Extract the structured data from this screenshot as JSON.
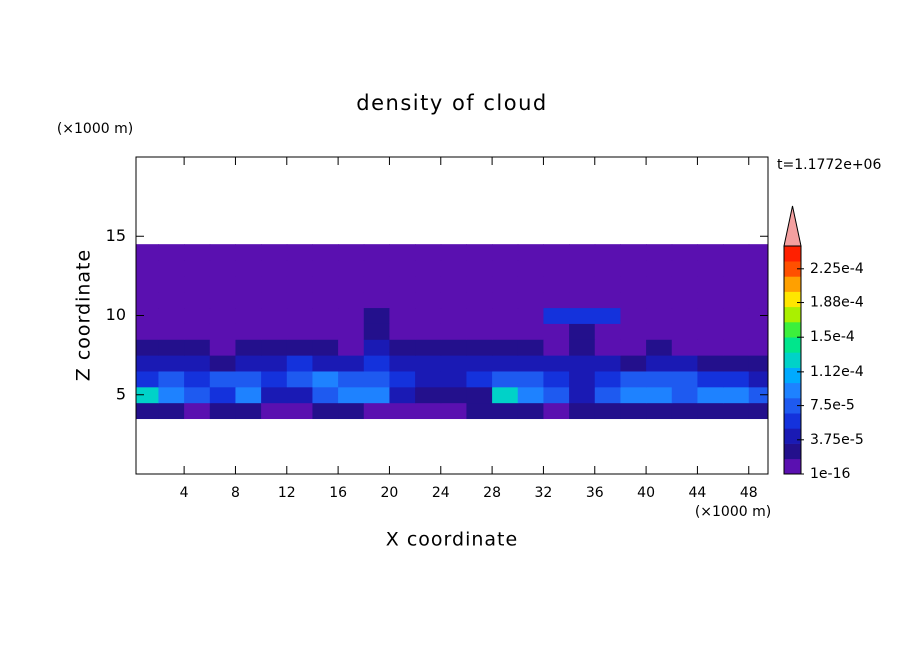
{
  "chart_data": {
    "type": "contour",
    "title": "density of cloud",
    "x_label": "X coordinate",
    "y_label": "Z coordinate",
    "x_unit": "(×1000 m)",
    "y_unit": "(×1000 m)",
    "annotation": "t=1.1772e+06",
    "xlim": [
      0.25,
      49.5
    ],
    "ylim": [
      0,
      20
    ],
    "xticks": [
      4,
      8,
      12,
      16,
      20,
      24,
      28,
      32,
      36,
      40,
      44,
      48
    ],
    "yticks": [
      5,
      10,
      15
    ],
    "x": [
      1,
      3,
      5,
      7,
      9,
      11,
      13,
      15,
      17,
      19,
      21,
      23,
      25,
      27,
      29,
      31,
      33,
      35,
      37,
      39,
      41,
      43,
      45,
      47,
      49
    ],
    "y": [
      4,
      5,
      6,
      7,
      8,
      9,
      10,
      11,
      12,
      13,
      14
    ],
    "z": [
      [
        2e-05,
        2e-05,
        1e-16,
        2e-05,
        2e-05,
        1e-16,
        1e-16,
        2e-05,
        2e-05,
        1e-16,
        1e-16,
        1e-16,
        1e-16,
        2e-05,
        2e-05,
        2e-05,
        1e-16,
        2e-05,
        2e-05,
        2e-05,
        2e-05,
        2e-05,
        2e-05,
        2e-05,
        2e-05
      ],
      [
        0.00012,
        9e-05,
        8e-05,
        6e-05,
        9e-05,
        5e-05,
        4e-05,
        8e-05,
        0.0001,
        9e-05,
        4e-05,
        2e-05,
        2e-05,
        3e-05,
        0.00013,
        0.0001,
        7e-05,
        4e-05,
        8e-05,
        9e-05,
        0.0001,
        8e-05,
        9e-05,
        9e-05,
        8e-05
      ],
      [
        6e-05,
        7e-05,
        6e-05,
        8e-05,
        7e-05,
        6e-05,
        7e-05,
        9e-05,
        8e-05,
        7e-05,
        6e-05,
        5e-05,
        4e-05,
        6e-05,
        8e-05,
        7e-05,
        6e-05,
        5e-05,
        6e-05,
        7e-05,
        8e-05,
        7e-05,
        6e-05,
        6e-05,
        5e-05
      ],
      [
        4e-05,
        4e-05,
        5e-05,
        3e-05,
        4e-05,
        5e-05,
        6e-05,
        4e-05,
        5e-05,
        6e-05,
        5e-05,
        4e-05,
        5e-05,
        4e-05,
        5e-05,
        4e-05,
        5e-05,
        4e-05,
        4e-05,
        3e-05,
        4e-05,
        4e-05,
        3e-05,
        3e-05,
        3e-05
      ],
      [
        2e-05,
        2e-05,
        2e-05,
        1e-16,
        2e-05,
        3e-05,
        2e-05,
        2e-05,
        1e-16,
        4e-05,
        2e-05,
        2e-05,
        2e-05,
        2e-05,
        2e-05,
        2e-05,
        1e-16,
        2e-05,
        1e-16,
        1e-16,
        2e-05,
        1e-16,
        1e-16,
        1e-16,
        1e-16
      ],
      [
        1e-16,
        1e-16,
        1e-16,
        1e-16,
        1e-16,
        1e-16,
        1e-16,
        1e-16,
        1e-16,
        2e-05,
        1e-16,
        1e-16,
        1e-16,
        1e-16,
        1e-16,
        1e-16,
        1e-16,
        2e-05,
        1e-16,
        1e-16,
        1e-16,
        1e-16,
        1e-16,
        1e-16,
        1e-16
      ],
      [
        1e-16,
        1e-16,
        1e-16,
        1e-16,
        1e-16,
        1e-16,
        1e-16,
        1e-16,
        1e-16,
        2e-05,
        1e-16,
        1e-16,
        1e-16,
        1e-16,
        1e-16,
        1e-16,
        6e-05,
        6e-05,
        6e-05,
        1e-16,
        1e-16,
        1e-16,
        1e-16,
        1e-16,
        1e-16
      ],
      [
        1e-16,
        1e-16,
        1e-16,
        1e-16,
        1e-16,
        1e-16,
        1e-16,
        1e-16,
        1e-16,
        1e-16,
        1e-16,
        1e-16,
        1e-16,
        1e-16,
        1e-16,
        1e-16,
        1e-16,
        1e-16,
        1e-16,
        1e-16,
        1e-16,
        1e-16,
        1e-16,
        1e-16,
        1e-16
      ],
      [
        1e-16,
        1e-16,
        1e-16,
        1e-16,
        1e-16,
        1e-16,
        1e-16,
        1e-16,
        1e-16,
        1e-16,
        1e-16,
        1e-16,
        1e-16,
        1e-16,
        1e-16,
        1e-16,
        1e-16,
        1e-16,
        1e-16,
        1e-16,
        1e-16,
        1e-16,
        1e-16,
        1e-16,
        1e-16
      ],
      [
        1e-16,
        1e-16,
        1e-16,
        1e-16,
        1e-16,
        1e-16,
        1e-16,
        1e-16,
        1e-16,
        1e-16,
        1e-16,
        1e-16,
        1e-16,
        1e-16,
        1e-16,
        1e-16,
        1e-16,
        1e-16,
        1e-16,
        1e-16,
        1e-16,
        1e-16,
        1e-16,
        1e-16,
        1e-16
      ],
      [
        1e-16,
        1e-16,
        1e-16,
        1e-16,
        1e-16,
        1e-16,
        1e-16,
        1e-16,
        1e-16,
        1e-16,
        1e-16,
        1e-16,
        1e-16,
        1e-16,
        1e-16,
        1e-16,
        1e-16,
        1e-16,
        1e-16,
        1e-16,
        1e-16,
        1e-16,
        1e-16,
        1e-16,
        1e-16
      ]
    ],
    "colorbar": {
      "clim": [
        1e-16,
        0.00025
      ],
      "colors": [
        "#5a10b0",
        "#23108c",
        "#1a1ab4",
        "#1432dc",
        "#1e5af0",
        "#1e82ff",
        "#00aaff",
        "#00d2c8",
        "#00e68c",
        "#3cf03c",
        "#aaf000",
        "#ffe600",
        "#ffa000",
        "#ff5000",
        "#ff2000"
      ],
      "extend_color": "#f4a0a0",
      "ticks": [
        1e-16,
        {
          "value": 3.75e-05,
          "label": "3.75e-5"
        },
        {
          "value": 7.5e-05,
          "label": "7.5e-5"
        },
        {
          "value": 0.000112,
          "label": "1.12e-4"
        },
        {
          "value": 0.00015,
          "label": "1.5e-4"
        },
        {
          "value": 0.000188,
          "label": "1.88e-4"
        },
        {
          "value": 0.000225,
          "label": "2.25e-4"
        }
      ]
    }
  }
}
